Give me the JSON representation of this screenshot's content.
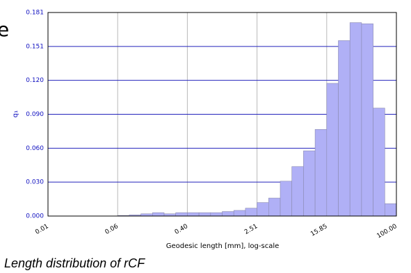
{
  "slide_text": "e",
  "caption": "Length distribution of rCF",
  "chart_data": {
    "type": "histogram",
    "xlabel": "Geodesic length [mm], log-scale",
    "ylabel": "q₁",
    "xscale": "log",
    "xlim": [
      0.01,
      100
    ],
    "xticks": [
      0.01,
      {
        "value": 0.0631,
        "label": "0.06"
      },
      {
        "value": 0.398,
        "label": "0.40"
      },
      {
        "value": 2.512,
        "label": "2.51"
      },
      {
        "value": 15.85,
        "label": "15.85"
      },
      {
        "value": 100,
        "label": "100.00"
      }
    ],
    "ylim": [
      0,
      0.181
    ],
    "yticks": [
      {
        "value": 0,
        "label": "0.000"
      },
      {
        "value": 0.0302,
        "label": "0.030"
      },
      {
        "value": 0.0603,
        "label": "0.060"
      },
      {
        "value": 0.0905,
        "label": "0.090"
      },
      {
        "value": 0.1207,
        "label": "0.120"
      },
      {
        "value": 0.1508,
        "label": "0.151"
      },
      {
        "value": 0.181,
        "label": "0.181"
      }
    ],
    "xgrid": true,
    "ygrid": true,
    "color": "#b0b0f6",
    "bins": [
      0.01,
      0.013594,
      0.018478,
      0.025119,
      0.034145,
      0.046416,
      0.063096,
      0.08577,
      0.11659,
      0.15849,
      0.21544,
      0.29286,
      0.39811,
      0.54117,
      0.73564,
      1,
      1.3594,
      1.8478,
      2.5119,
      3.4145,
      4.6416,
      6.3096,
      8.577,
      11.659,
      15.849,
      21.544,
      29.286,
      39.811,
      54.117,
      73.564,
      100
    ],
    "values": [
      0,
      0,
      0,
      0,
      0,
      0,
      0.0005,
      0.001,
      0.002,
      0.003,
      0.002,
      0.003,
      0.003,
      0.003,
      0.003,
      0.004,
      0.005,
      0.007,
      0.012,
      0.016,
      0.031,
      0.044,
      0.058,
      0.077,
      0.118,
      0.156,
      0.172,
      0.171,
      0.096,
      0.011
    ]
  }
}
